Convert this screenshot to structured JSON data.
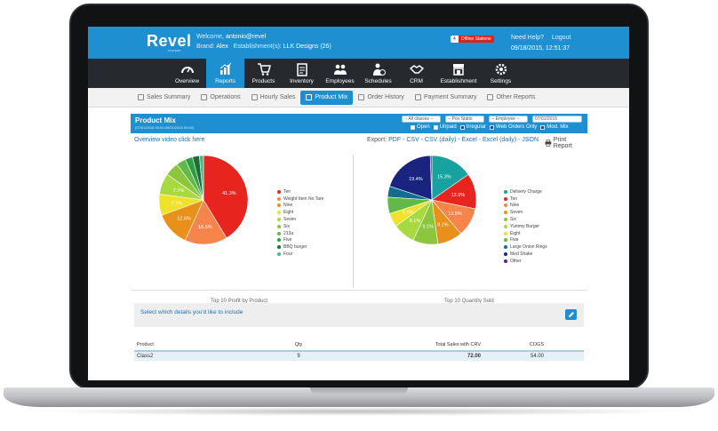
{
  "header": {
    "logo": "Revel",
    "logo_sub": "SYSTEMS",
    "welcome_prefix": "Welcome,",
    "welcome_user": "antonio@revel",
    "brand_label": "Brand:",
    "brand_value": "Alex",
    "establishment_label": "Establishment(s):",
    "establishment_value": "LLK Designs (26)",
    "offline_count": "4",
    "offline_label": "Offline Stations",
    "help": "Need Help?",
    "logout": "Logout",
    "datetime": "09/18/2015, 12:51:37"
  },
  "nav": [
    {
      "label": "Overview",
      "icon": "gauge-icon"
    },
    {
      "label": "Reports",
      "icon": "bar-chart-icon"
    },
    {
      "label": "Products",
      "icon": "cart-icon"
    },
    {
      "label": "Inventory",
      "icon": "clipboard-icon"
    },
    {
      "label": "Employees",
      "icon": "people-icon"
    },
    {
      "label": "Schedules",
      "icon": "person-clock-icon"
    },
    {
      "label": "CRM",
      "icon": "handshake-icon"
    },
    {
      "label": "Establishment",
      "icon": "store-icon"
    },
    {
      "label": "Settings",
      "icon": "gear-icon"
    }
  ],
  "nav_active": "Reports",
  "subtabs": [
    "Sales Summary",
    "Operations",
    "Hourly Sales",
    "Product Mix",
    "Order History",
    "Payment Summary",
    "Other Reports"
  ],
  "subtab_active": "Product Mix",
  "panel": {
    "title": "Product Mix",
    "date_range": "(07/01/2015 00:00-09/01/2015 00:00)",
    "filters": [
      "-- All classes --",
      "-- Pos Statio",
      "-- Employee --",
      "07/01/2015"
    ],
    "checks": [
      {
        "label": "Open",
        "checked": false
      },
      {
        "label": "Unpaid",
        "checked": false
      },
      {
        "label": "Irregular",
        "checked": true
      },
      {
        "label": "Web Orders Only",
        "checked": true
      },
      {
        "label": "Mod. Mix",
        "checked": true
      }
    ]
  },
  "links": {
    "overview": "Overview video click here",
    "export_label": "Export:",
    "export_items": [
      "PDF",
      "CSV",
      "CSV (daily)",
      "Excel",
      "Excel (daily)",
      "JSON"
    ],
    "print": "Print Report"
  },
  "chart_data": [
    {
      "type": "pie",
      "title": "Top 10 Profit by Product",
      "categories": [
        "Ten",
        "Weight Item No Tare",
        "Nine",
        "Eight",
        "Seven",
        "Six",
        "213a",
        "Five",
        "BBQ burger",
        "Four"
      ],
      "values": [
        41.3,
        15.5,
        12.6,
        7.7,
        7.7,
        5.0,
        3.5,
        2.7,
        2.5,
        1.5
      ],
      "labels": [
        "41.3%",
        "15.5%",
        "12.6%",
        "7.7%",
        "7.7%",
        "",
        "",
        "",
        "",
        ""
      ],
      "colors": [
        "#e8241f",
        "#f7854b",
        "#e8901a",
        "#f0e12a",
        "#a8d940",
        "#8cc63f",
        "#62b946",
        "#2e9e44",
        "#1b6e3a",
        "#4cb886"
      ]
    },
    {
      "type": "pie",
      "title": "Top 10 Quantity Sold",
      "categories": [
        "Delivery Charge",
        "Ten",
        "Nine",
        "Seven",
        "Six",
        "Yummy Burger",
        "Eight",
        "Five",
        "Large Onion Rings",
        "Med Shake",
        "Other"
      ],
      "values": [
        15.3,
        12.9,
        10.5,
        9.1,
        9.1,
        8.1,
        5.0,
        6.0,
        4.0,
        19.4,
        0.6
      ],
      "labels": [
        "15.3%",
        "12.9%",
        "10.5%",
        "9.1%",
        "9.1%",
        "8.1%",
        "5.0%",
        "",
        "",
        "19.4%",
        ""
      ],
      "colors": [
        "#17a2a0",
        "#e8241f",
        "#f7854b",
        "#e8901a",
        "#8cc63f",
        "#a8d940",
        "#f0e12a",
        "#62b946",
        "#0f6e8c",
        "#1a237e",
        "#6a1b9a"
      ]
    }
  ],
  "details_prompt": "Select which details you'd like to include",
  "table": {
    "headers": [
      "Product",
      "Qty",
      "Total Sales with CRV",
      "COGS"
    ],
    "rows": [
      [
        "Class2",
        "9",
        "72.00",
        "54.00"
      ]
    ]
  }
}
